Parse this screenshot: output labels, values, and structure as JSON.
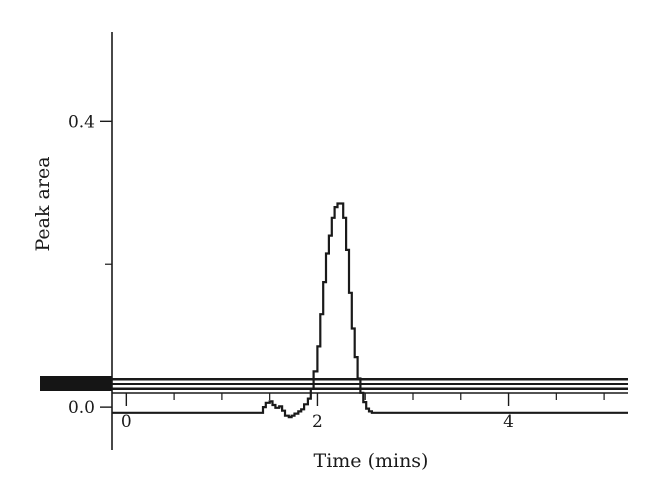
{
  "chart_data": {
    "type": "line",
    "title": "",
    "xlabel": "Time (mins)",
    "ylabel": "Peak area",
    "xlim": [
      -0.15,
      5.25
    ],
    "ylim": [
      -0.06,
      0.525
    ],
    "x_ticks": [
      0,
      2,
      4
    ],
    "x_tick_labels": [
      "0",
      "2",
      "4"
    ],
    "x_minor_ticks": [
      0.5,
      1,
      1.5,
      2.5,
      3,
      3.5,
      4.5,
      5
    ],
    "y_ticks": [
      0.0,
      0.4
    ],
    "y_tick_labels": [
      "0.0",
      "0.4"
    ],
    "y_minor_ticks": [
      0.2
    ],
    "grid": false,
    "legend": "none",
    "line_color": "#1a1a1a",
    "series": [
      {
        "x": [
          -0.15,
          1.4,
          1.43,
          1.46,
          1.5,
          1.53,
          1.56,
          1.6,
          1.63,
          1.66,
          1.7,
          1.73,
          1.76,
          1.8,
          1.83,
          1.86,
          1.9,
          1.93,
          1.96,
          2.0,
          2.03,
          2.06,
          2.09,
          2.12,
          2.15,
          2.18,
          2.21,
          2.24,
          2.27,
          2.3,
          2.33,
          2.36,
          2.39,
          2.42,
          2.45,
          2.48,
          2.51,
          2.54,
          2.57,
          2.6,
          2.63,
          2.66,
          5.25
        ],
        "y": [
          -0.008,
          -0.008,
          0.0,
          0.006,
          0.008,
          0.003,
          -0.001,
          0.001,
          -0.005,
          -0.012,
          -0.014,
          -0.012,
          -0.009,
          -0.006,
          -0.003,
          0.004,
          0.012,
          0.026,
          0.05,
          0.085,
          0.13,
          0.175,
          0.215,
          0.24,
          0.265,
          0.28,
          0.285,
          0.285,
          0.265,
          0.22,
          0.16,
          0.11,
          0.07,
          0.04,
          0.02,
          0.007,
          -0.002,
          -0.006,
          -0.008,
          -0.008,
          -0.008,
          -0.008,
          -0.008
        ]
      }
    ]
  }
}
